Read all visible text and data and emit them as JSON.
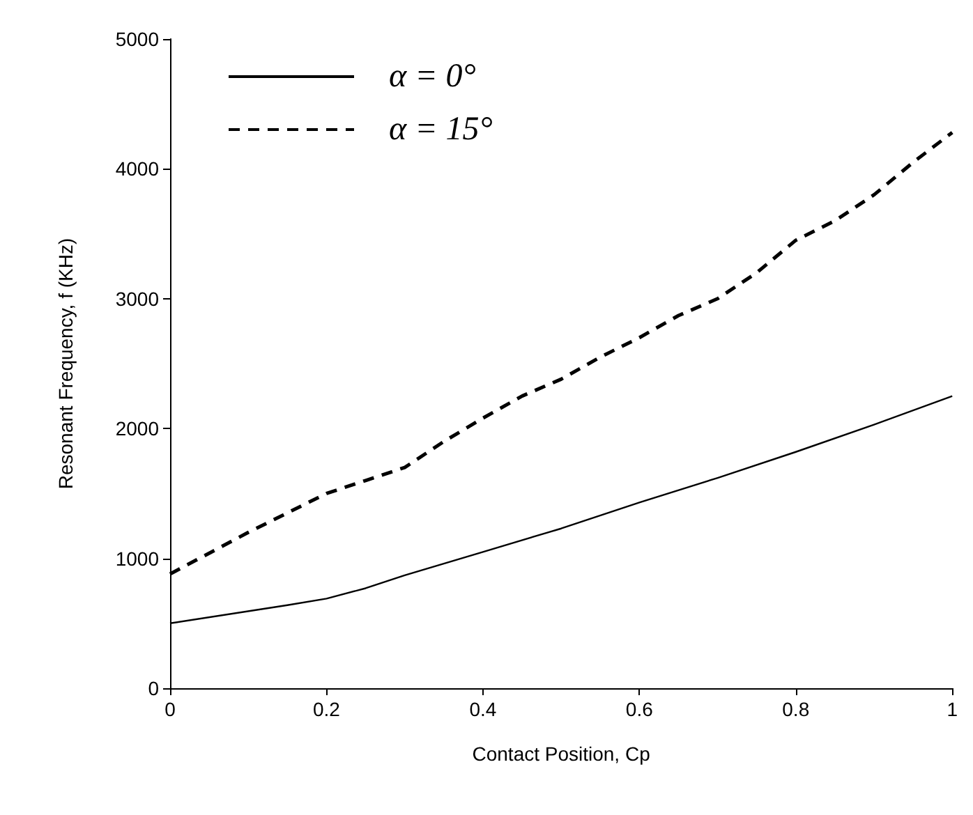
{
  "chart_data": {
    "type": "line",
    "xlabel": "Contact Position, Cp",
    "ylabel": "Resonant Frequency, f (KHz)",
    "xlim": [
      0,
      1
    ],
    "xticks": [
      0,
      0.2,
      0.4,
      0.6,
      0.8,
      1
    ],
    "ylim": [
      0,
      5000
    ],
    "yticks": [
      0,
      1000,
      2000,
      3000,
      4000,
      5000
    ],
    "grid": false,
    "legend": "top left",
    "marker": "none",
    "series": [
      {
        "name": "α = 0°",
        "color": "#000000",
        "line_style": "solid",
        "x": [
          0,
          0.15,
          0.2,
          0.25,
          0.3,
          0.4,
          0.5,
          0.6,
          0.7,
          0.8,
          0.9,
          1
        ],
        "values": [
          500,
          640,
          690,
          770,
          870,
          1050,
          1230,
          1430,
          1620,
          1820,
          2030,
          2250
        ]
      },
      {
        "name": "α = 15°",
        "color": "#000000",
        "line_style": "dashed",
        "x": [
          0,
          0.1,
          0.2,
          0.25,
          0.3,
          0.35,
          0.4,
          0.45,
          0.5,
          0.55,
          0.6,
          0.65,
          0.7,
          0.75,
          0.8,
          0.85,
          0.9,
          0.95,
          1
        ],
        "values": [
          880,
          1200,
          1500,
          1600,
          1700,
          1900,
          2080,
          2250,
          2380,
          2550,
          2700,
          2870,
          3000,
          3200,
          3450,
          3600,
          3800,
          4050,
          4280
        ]
      }
    ]
  }
}
